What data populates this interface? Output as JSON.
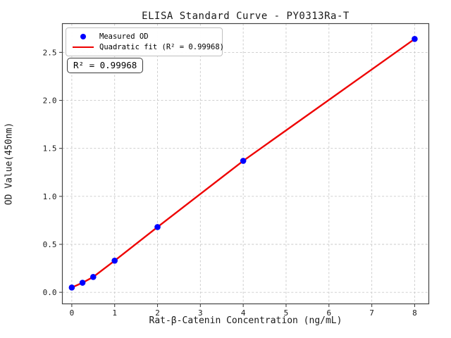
{
  "chart": {
    "title": "ELISA Standard Curve - PY0313Ra-T",
    "xlabel": "Rat-β-Catenin Concentration (ng/mL)",
    "ylabel": "OD Value(450nm)",
    "annotation": "R² = 0.99968",
    "legend": [
      {
        "label": "Measured OD",
        "marker": "dot"
      },
      {
        "label": "Quadratic fit (R² = 0.99968)",
        "marker": "line"
      }
    ]
  },
  "colors": {
    "measured_points": "#0000ff",
    "fit_line": "#ee0000",
    "grid": "#c9c9c9",
    "spine": "#444444",
    "tick_text": "#1a1a1a"
  },
  "chart_data": {
    "type": "scatter",
    "title": "ELISA Standard Curve - PY0313Ra-T",
    "xlabel": "Rat-β-Catenin Concentration (ng/mL)",
    "ylabel": "OD Value(450nm)",
    "series": [
      {
        "name": "Measured OD",
        "type": "scatter",
        "x": [
          0,
          0.25,
          0.5,
          1,
          2,
          4,
          8
        ],
        "y": [
          0.05,
          0.1,
          0.16,
          0.33,
          0.68,
          1.37,
          2.64
        ]
      },
      {
        "name": "Quadratic fit (R² = 0.99968)",
        "type": "line",
        "x": [
          0,
          0.25,
          0.5,
          1,
          2,
          4,
          8
        ],
        "y": [
          0.05,
          0.1,
          0.16,
          0.33,
          0.68,
          1.37,
          2.64
        ]
      }
    ],
    "r_squared": 0.99968,
    "x_ticks": [
      "0",
      "1",
      "2",
      "3",
      "4",
      "5",
      "6",
      "7",
      "8"
    ],
    "y_ticks": [
      "0.0",
      "0.5",
      "1.0",
      "1.5",
      "2.0",
      "2.5"
    ],
    "xlim": [
      -0.22,
      8.33
    ],
    "ylim": [
      -0.12,
      2.8
    ],
    "grid": true,
    "grid_style": "dashed",
    "legend_position": "upper-left"
  }
}
